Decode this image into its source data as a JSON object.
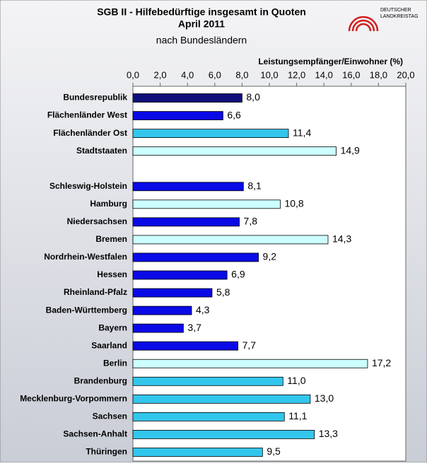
{
  "chart_data": {
    "type": "barh",
    "title": "SGB II - Hilfebedürftige insgesamt in Quoten",
    "subtitle": "April 2011",
    "subtitle2": "nach Bundesländern",
    "xlabel": "Leistungsempfänger/Einwohner (%)",
    "logo": [
      "DEUTSCHER",
      "LANDKREISTAG"
    ],
    "categories": [
      "Bundesrepublik",
      "Flächenländer West",
      "Flächenländer Ost",
      "Stadtstaaten",
      null,
      "Schleswig-Holstein",
      "Hamburg",
      "Niedersachsen",
      "Bremen",
      "Nordrhein-Westfalen",
      "Hessen",
      "Rheinland-Pfalz",
      "Baden-Württemberg",
      "Bayern",
      "Saarland",
      "Berlin",
      "Brandenburg",
      "Mecklenburg-Vorpommern",
      "Sachsen",
      "Sachsen-Anhalt",
      "Thüringen"
    ],
    "values": [
      8.0,
      6.6,
      11.4,
      14.9,
      null,
      8.1,
      10.8,
      7.8,
      14.3,
      9.2,
      6.9,
      5.8,
      4.3,
      3.7,
      7.7,
      17.2,
      11.0,
      13.0,
      11.1,
      13.3,
      9.5
    ],
    "value_labels": [
      "8,0",
      "6,6",
      "11,4",
      "14,9",
      null,
      "8,1",
      "10,8",
      "7,8",
      "14,3",
      "9,2",
      "6,9",
      "5,8",
      "4,3",
      "3,7",
      "7,7",
      "17,2",
      "11,0",
      "13,0",
      "11,1",
      "13,3",
      "9,5"
    ],
    "colors": [
      "#10107a",
      "#0a0ae6",
      "#33c6ec",
      "#ccffff",
      null,
      "#0a0ae6",
      "#ccffff",
      "#0a0ae6",
      "#ccffff",
      "#0a0ae6",
      "#0a0ae6",
      "#0a0ae6",
      "#0a0ae6",
      "#0a0ae6",
      "#0a0ae6",
      "#ccffff",
      "#33c6ec",
      "#33c6ec",
      "#33c6ec",
      "#33c6ec",
      "#33c6ec"
    ],
    "xlim": [
      0,
      20
    ],
    "xticks": [
      {
        "value": 0,
        "label": "0,0"
      },
      {
        "value": 2,
        "label": "2,0"
      },
      {
        "value": 4,
        "label": "4,0"
      },
      {
        "value": 6,
        "label": "6,0"
      },
      {
        "value": 8,
        "label": "8,0"
      },
      {
        "value": 10,
        "label": "10,0"
      },
      {
        "value": 12,
        "label": "12,0"
      },
      {
        "value": 14,
        "label": "14,0"
      },
      {
        "value": 16,
        "label": "16,0"
      },
      {
        "value": 18,
        "label": "18,0"
      },
      {
        "value": 20,
        "label": "20,0"
      }
    ]
  }
}
